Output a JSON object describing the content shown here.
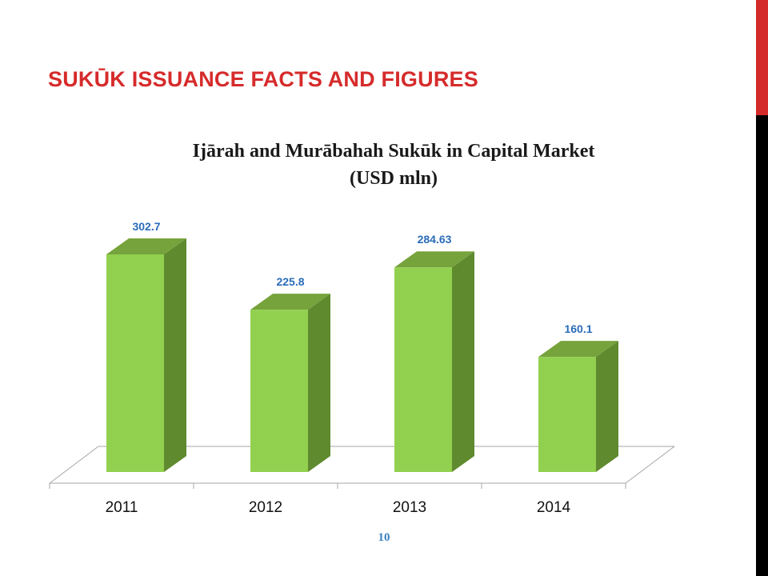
{
  "slide": {
    "title": "SUKŪK ISSUANCE FACTS AND FIGURES",
    "page_number": "10"
  },
  "colors": {
    "title": "#d62b2b",
    "bar_front": "#92d050",
    "bar_side": "#5f8a2e",
    "bar_top": "#76a33c",
    "data_label": "#2a6cb8",
    "side_bar_red": "#d42a2a",
    "side_bar_black": "#000000"
  },
  "chart_data": {
    "type": "bar",
    "title": [
      "Ijārah and Murābahah Sukūk in Capital Market",
      "(USD mln)"
    ],
    "categories": [
      "2011",
      "2012",
      "2013",
      "2014"
    ],
    "values": [
      302.7,
      225.8,
      284.63,
      160.1
    ],
    "value_labels": [
      "302.7",
      "225.8",
      "284.63",
      "160.1"
    ],
    "ylim": [
      0,
      302.7
    ],
    "grid": false,
    "legend": "none",
    "style": "3d"
  }
}
